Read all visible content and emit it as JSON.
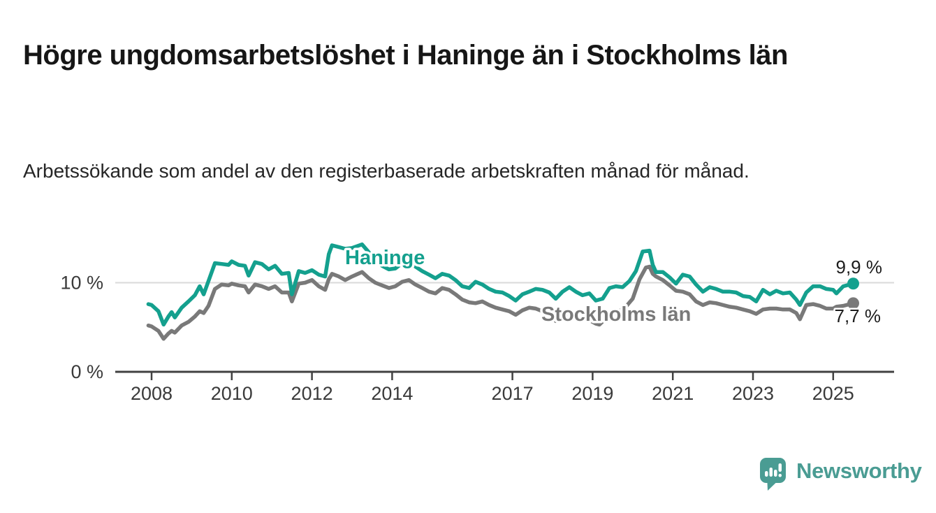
{
  "header": {
    "title": "Högre ungdomsarbetslöshet i Haninge än i Stockholms län",
    "subtitle": "Arbetssökande som andel av den registerbaserade arbetskraften månad för månad."
  },
  "chart_data": {
    "type": "line",
    "title": "Högre ungdomsarbetslöshet i Haninge än i Stockholms län",
    "subtitle": "Arbetssökande som andel av den registerbaserade arbetskraften månad för månad.",
    "unit": "%",
    "decimal_separator": ",",
    "xlim": [
      2007.1,
      2026.5
    ],
    "ylim": [
      0,
      15.8
    ],
    "x_ticks": [
      2008,
      2010,
      2012,
      2014,
      2017,
      2019,
      2021,
      2023,
      2025
    ],
    "y_ticks": [
      {
        "value": 0,
        "label": "0 %",
        "grid": false
      },
      {
        "value": 10,
        "label": "10 %",
        "grid": true
      }
    ],
    "grid": "single light horizontal gridline at 10 %",
    "legend_position": "inline labels next to lines",
    "series": [
      {
        "name": "Haninge",
        "color": "#14a08e",
        "end_label": "9,9 %",
        "end_value": 9.9,
        "points": [
          [
            2007.92,
            7.6
          ],
          [
            2008.0,
            7.5
          ],
          [
            2008.17,
            6.8
          ],
          [
            2008.3,
            5.3
          ],
          [
            2008.42,
            6.2
          ],
          [
            2008.5,
            6.7
          ],
          [
            2008.58,
            6.1
          ],
          [
            2008.75,
            7.2
          ],
          [
            2008.92,
            7.9
          ],
          [
            2009.08,
            8.6
          ],
          [
            2009.2,
            9.6
          ],
          [
            2009.3,
            8.7
          ],
          [
            2009.42,
            10.2
          ],
          [
            2009.58,
            12.2
          ],
          [
            2009.75,
            12.1
          ],
          [
            2009.92,
            12.0
          ],
          [
            2010.0,
            12.4
          ],
          [
            2010.17,
            12.0
          ],
          [
            2010.33,
            11.9
          ],
          [
            2010.42,
            10.8
          ],
          [
            2010.58,
            12.3
          ],
          [
            2010.75,
            12.1
          ],
          [
            2010.92,
            11.5
          ],
          [
            2011.08,
            11.9
          ],
          [
            2011.25,
            11.0
          ],
          [
            2011.42,
            11.1
          ],
          [
            2011.5,
            8.7
          ],
          [
            2011.67,
            11.3
          ],
          [
            2011.83,
            11.1
          ],
          [
            2012.0,
            11.4
          ],
          [
            2012.17,
            10.9
          ],
          [
            2012.33,
            10.7
          ],
          [
            2012.42,
            13.2
          ],
          [
            2012.5,
            14.2
          ],
          [
            2012.67,
            14.0
          ],
          [
            2012.83,
            13.8
          ],
          [
            2013.0,
            13.9
          ],
          [
            2013.25,
            14.3
          ],
          [
            2013.42,
            13.4
          ],
          [
            2013.58,
            12.5
          ],
          [
            2013.75,
            11.9
          ],
          [
            2013.92,
            11.5
          ],
          [
            2014.08,
            11.6
          ],
          [
            2014.25,
            12.2
          ],
          [
            2014.42,
            12.4
          ],
          [
            2014.58,
            11.8
          ],
          [
            2014.75,
            11.3
          ],
          [
            2014.92,
            10.9
          ],
          [
            2015.08,
            10.5
          ],
          [
            2015.25,
            11.0
          ],
          [
            2015.42,
            10.8
          ],
          [
            2015.58,
            10.3
          ],
          [
            2015.75,
            9.6
          ],
          [
            2015.92,
            9.4
          ],
          [
            2016.08,
            10.1
          ],
          [
            2016.25,
            9.8
          ],
          [
            2016.42,
            9.3
          ],
          [
            2016.58,
            9.0
          ],
          [
            2016.75,
            8.9
          ],
          [
            2016.92,
            8.5
          ],
          [
            2017.08,
            8.0
          ],
          [
            2017.25,
            8.7
          ],
          [
            2017.42,
            9.0
          ],
          [
            2017.58,
            9.3
          ],
          [
            2017.75,
            9.2
          ],
          [
            2017.92,
            8.9
          ],
          [
            2018.08,
            8.2
          ],
          [
            2018.25,
            9.0
          ],
          [
            2018.42,
            9.5
          ],
          [
            2018.58,
            9.0
          ],
          [
            2018.75,
            8.6
          ],
          [
            2018.92,
            8.8
          ],
          [
            2019.08,
            8.0
          ],
          [
            2019.25,
            8.2
          ],
          [
            2019.42,
            9.4
          ],
          [
            2019.58,
            9.6
          ],
          [
            2019.75,
            9.5
          ],
          [
            2019.92,
            10.2
          ],
          [
            2020.08,
            11.3
          ],
          [
            2020.25,
            13.5
          ],
          [
            2020.42,
            13.6
          ],
          [
            2020.5,
            12.0
          ],
          [
            2020.58,
            11.2
          ],
          [
            2020.75,
            11.2
          ],
          [
            2020.92,
            10.6
          ],
          [
            2021.08,
            9.9
          ],
          [
            2021.25,
            10.9
          ],
          [
            2021.42,
            10.7
          ],
          [
            2021.58,
            9.8
          ],
          [
            2021.75,
            9.0
          ],
          [
            2021.92,
            9.5
          ],
          [
            2022.08,
            9.3
          ],
          [
            2022.25,
            9.0
          ],
          [
            2022.42,
            9.0
          ],
          [
            2022.58,
            8.9
          ],
          [
            2022.75,
            8.5
          ],
          [
            2022.92,
            8.4
          ],
          [
            2023.08,
            7.9
          ],
          [
            2023.25,
            9.2
          ],
          [
            2023.42,
            8.7
          ],
          [
            2023.58,
            9.1
          ],
          [
            2023.75,
            8.8
          ],
          [
            2023.92,
            8.9
          ],
          [
            2024.08,
            8.1
          ],
          [
            2024.17,
            7.5
          ],
          [
            2024.33,
            8.9
          ],
          [
            2024.5,
            9.6
          ],
          [
            2024.67,
            9.6
          ],
          [
            2024.83,
            9.3
          ],
          [
            2025.0,
            9.2
          ],
          [
            2025.08,
            8.8
          ],
          [
            2025.25,
            9.6
          ],
          [
            2025.5,
            9.9
          ]
        ]
      },
      {
        "name": "Stockholms län",
        "color": "#797979",
        "end_label": "7,7 %",
        "end_value": 7.7,
        "points": [
          [
            2007.92,
            5.2
          ],
          [
            2008.0,
            5.1
          ],
          [
            2008.17,
            4.6
          ],
          [
            2008.3,
            3.7
          ],
          [
            2008.42,
            4.3
          ],
          [
            2008.5,
            4.6
          ],
          [
            2008.58,
            4.4
          ],
          [
            2008.75,
            5.2
          ],
          [
            2008.92,
            5.6
          ],
          [
            2009.08,
            6.2
          ],
          [
            2009.2,
            6.8
          ],
          [
            2009.3,
            6.6
          ],
          [
            2009.42,
            7.4
          ],
          [
            2009.58,
            9.3
          ],
          [
            2009.75,
            9.8
          ],
          [
            2009.92,
            9.7
          ],
          [
            2010.0,
            9.9
          ],
          [
            2010.17,
            9.7
          ],
          [
            2010.33,
            9.6
          ],
          [
            2010.42,
            8.9
          ],
          [
            2010.58,
            9.8
          ],
          [
            2010.75,
            9.6
          ],
          [
            2010.92,
            9.3
          ],
          [
            2011.08,
            9.6
          ],
          [
            2011.25,
            8.9
          ],
          [
            2011.42,
            8.9
          ],
          [
            2011.5,
            7.9
          ],
          [
            2011.67,
            9.9
          ],
          [
            2011.83,
            10.0
          ],
          [
            2012.0,
            10.3
          ],
          [
            2012.17,
            9.6
          ],
          [
            2012.33,
            9.2
          ],
          [
            2012.42,
            10.4
          ],
          [
            2012.5,
            11.0
          ],
          [
            2012.67,
            10.7
          ],
          [
            2012.83,
            10.3
          ],
          [
            2013.0,
            10.7
          ],
          [
            2013.25,
            11.2
          ],
          [
            2013.42,
            10.5
          ],
          [
            2013.58,
            10.0
          ],
          [
            2013.75,
            9.7
          ],
          [
            2013.92,
            9.4
          ],
          [
            2014.08,
            9.6
          ],
          [
            2014.25,
            10.1
          ],
          [
            2014.42,
            10.3
          ],
          [
            2014.58,
            9.8
          ],
          [
            2014.75,
            9.4
          ],
          [
            2014.92,
            9.0
          ],
          [
            2015.08,
            8.8
          ],
          [
            2015.25,
            9.4
          ],
          [
            2015.42,
            9.2
          ],
          [
            2015.58,
            8.7
          ],
          [
            2015.75,
            8.1
          ],
          [
            2015.92,
            7.8
          ],
          [
            2016.08,
            7.7
          ],
          [
            2016.25,
            7.9
          ],
          [
            2016.42,
            7.5
          ],
          [
            2016.58,
            7.2
          ],
          [
            2016.75,
            7.0
          ],
          [
            2016.92,
            6.8
          ],
          [
            2017.08,
            6.4
          ],
          [
            2017.25,
            6.9
          ],
          [
            2017.42,
            7.2
          ],
          [
            2017.58,
            7.1
          ],
          [
            2017.75,
            6.8
          ],
          [
            2017.92,
            6.4
          ],
          [
            2018.08,
            5.7
          ],
          [
            2018.25,
            6.3
          ],
          [
            2018.42,
            6.4
          ],
          [
            2018.58,
            6.2
          ],
          [
            2018.75,
            5.9
          ],
          [
            2018.92,
            5.8
          ],
          [
            2019.08,
            5.4
          ],
          [
            2019.17,
            5.3
          ],
          [
            2019.33,
            6.0
          ],
          [
            2019.5,
            6.4
          ],
          [
            2019.67,
            6.8
          ],
          [
            2019.83,
            7.3
          ],
          [
            2020.0,
            8.2
          ],
          [
            2020.17,
            10.4
          ],
          [
            2020.33,
            11.7
          ],
          [
            2020.42,
            11.8
          ],
          [
            2020.5,
            11.0
          ],
          [
            2020.58,
            10.7
          ],
          [
            2020.75,
            10.3
          ],
          [
            2020.92,
            9.7
          ],
          [
            2021.08,
            9.1
          ],
          [
            2021.25,
            9.0
          ],
          [
            2021.42,
            8.7
          ],
          [
            2021.58,
            7.9
          ],
          [
            2021.75,
            7.5
          ],
          [
            2021.92,
            7.8
          ],
          [
            2022.08,
            7.7
          ],
          [
            2022.25,
            7.5
          ],
          [
            2022.42,
            7.3
          ],
          [
            2022.58,
            7.2
          ],
          [
            2022.75,
            7.0
          ],
          [
            2022.92,
            6.8
          ],
          [
            2023.08,
            6.5
          ],
          [
            2023.25,
            7.0
          ],
          [
            2023.42,
            7.1
          ],
          [
            2023.58,
            7.1
          ],
          [
            2023.75,
            7.0
          ],
          [
            2023.92,
            7.0
          ],
          [
            2024.08,
            6.6
          ],
          [
            2024.17,
            5.9
          ],
          [
            2024.33,
            7.5
          ],
          [
            2024.5,
            7.6
          ],
          [
            2024.67,
            7.4
          ],
          [
            2024.83,
            7.1
          ],
          [
            2025.0,
            7.1
          ],
          [
            2025.08,
            7.3
          ],
          [
            2025.25,
            7.4
          ],
          [
            2025.5,
            7.7
          ]
        ]
      }
    ]
  },
  "footer": {
    "brand": "Newsworthy",
    "brand_color": "#4a9c93",
    "logo_icon": "bar-chart-speech-bubble-icon"
  },
  "colors": {
    "background": "#ffffff",
    "title_text": "#161616",
    "body_text": "#262626",
    "axis_text": "#3a3a3a",
    "axis_line": "#414141",
    "gridline": "#dadada"
  }
}
